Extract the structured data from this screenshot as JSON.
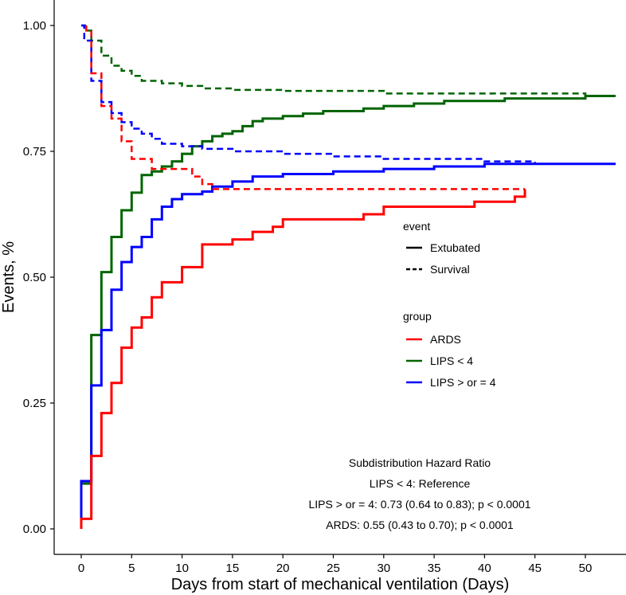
{
  "chart_data": {
    "type": "line",
    "step": true,
    "xlabel": "Days from start of mechanical ventilation (Days)",
    "ylabel": "Events, %",
    "xlim": [
      -2.6,
      54
    ],
    "ylim": [
      -0.05,
      1.05
    ],
    "xticks": [
      0,
      5,
      10,
      15,
      20,
      25,
      30,
      35,
      40,
      45,
      50
    ],
    "yticks": [
      0.0,
      0.25,
      0.5,
      0.75,
      1.0
    ],
    "ytick_labels": [
      "0.00",
      "0.25",
      "0.50",
      "0.75",
      "1.00"
    ],
    "grid": false,
    "legend": {
      "placement": "right-center",
      "event_title": "event",
      "event_items": [
        {
          "label": "Extubated",
          "linetype": "solid"
        },
        {
          "label": "Survival",
          "linetype": "dashed"
        }
      ],
      "group_title": "group",
      "group_items": [
        {
          "label": "ARDS",
          "color": "#ff0000"
        },
        {
          "label": "LIPS < 4",
          "color": "#006400"
        },
        {
          "label": "LIPS > or = 4",
          "color": "#0000ff"
        }
      ]
    },
    "annotation": [
      "Subdistribution Hazard Ratio",
      "LIPS < 4: Reference",
      "LIPS > or = 4: 0.73 (0.64 to 0.83); p < 0.0001",
      "ARDS: 0.55 (0.43 to 0.70); p < 0.0001"
    ],
    "series": [
      {
        "name": "LIPS < 4 Extubated",
        "group": "LIPS < 4",
        "event": "Extubated",
        "color": "#006400",
        "x": [
          0,
          1,
          2,
          3,
          4,
          5,
          6,
          7,
          8,
          9,
          10,
          11,
          12,
          13,
          14,
          15,
          16,
          17,
          18,
          20,
          22,
          24,
          28,
          30,
          33,
          36,
          42,
          50,
          53
        ],
        "y": [
          0.09,
          0.385,
          0.51,
          0.58,
          0.633,
          0.668,
          0.703,
          0.71,
          0.72,
          0.73,
          0.745,
          0.76,
          0.77,
          0.78,
          0.785,
          0.79,
          0.8,
          0.81,
          0.815,
          0.82,
          0.825,
          0.83,
          0.835,
          0.84,
          0.845,
          0.85,
          0.855,
          0.86,
          0.86
        ]
      },
      {
        "name": "LIPS > or = 4 Extubated",
        "group": "LIPS > or = 4",
        "event": "Extubated",
        "color": "#0000ff",
        "x": [
          0,
          1,
          2,
          3,
          4,
          5,
          6,
          7,
          8,
          9,
          10,
          12,
          13,
          15,
          17,
          20,
          25,
          30,
          35,
          40,
          53
        ],
        "y": [
          0.095,
          0.285,
          0.395,
          0.475,
          0.53,
          0.56,
          0.58,
          0.615,
          0.64,
          0.655,
          0.665,
          0.67,
          0.68,
          0.69,
          0.7,
          0.705,
          0.71,
          0.715,
          0.72,
          0.725,
          0.725
        ]
      },
      {
        "name": "ARDS Extubated",
        "group": "ARDS",
        "event": "Extubated",
        "color": "#ff0000",
        "x": [
          0,
          1,
          2,
          3,
          4,
          5,
          6,
          7,
          8,
          10,
          12,
          15,
          17,
          19,
          20,
          28,
          30,
          39,
          43,
          44
        ],
        "y": [
          0.02,
          0.145,
          0.23,
          0.29,
          0.36,
          0.4,
          0.42,
          0.46,
          0.49,
          0.52,
          0.565,
          0.575,
          0.59,
          0.6,
          0.615,
          0.625,
          0.64,
          0.65,
          0.66,
          0.675
        ]
      },
      {
        "name": "LIPS < 4 Survival",
        "group": "LIPS < 4",
        "event": "Survival",
        "color": "#006400",
        "x": [
          0,
          0.4,
          1,
          2,
          3,
          4,
          5,
          6,
          8,
          10,
          12,
          15,
          20,
          30,
          50,
          53
        ],
        "y": [
          1.0,
          0.99,
          0.97,
          0.94,
          0.92,
          0.91,
          0.9,
          0.89,
          0.885,
          0.88,
          0.875,
          0.872,
          0.87,
          0.865,
          0.86,
          0.86
        ]
      },
      {
        "name": "LIPS > or = 4 Survival",
        "group": "LIPS > or = 4",
        "event": "Survival",
        "color": "#0000ff",
        "x": [
          0,
          0.3,
          1,
          2,
          3,
          4,
          5,
          6,
          7,
          8,
          10,
          12,
          15,
          20,
          25,
          30,
          40,
          45,
          53
        ],
        "y": [
          1.0,
          0.97,
          0.89,
          0.848,
          0.826,
          0.808,
          0.795,
          0.785,
          0.775,
          0.765,
          0.76,
          0.755,
          0.75,
          0.745,
          0.74,
          0.735,
          0.73,
          0.725,
          0.725
        ]
      },
      {
        "name": "ARDS Survival",
        "group": "ARDS",
        "event": "Survival",
        "color": "#ff0000",
        "x": [
          0.5,
          1,
          2,
          3,
          4,
          5,
          7,
          11,
          12,
          13,
          44
        ],
        "y": [
          0.99,
          0.905,
          0.84,
          0.815,
          0.77,
          0.735,
          0.715,
          0.7,
          0.685,
          0.675,
          0.675
        ]
      }
    ]
  }
}
